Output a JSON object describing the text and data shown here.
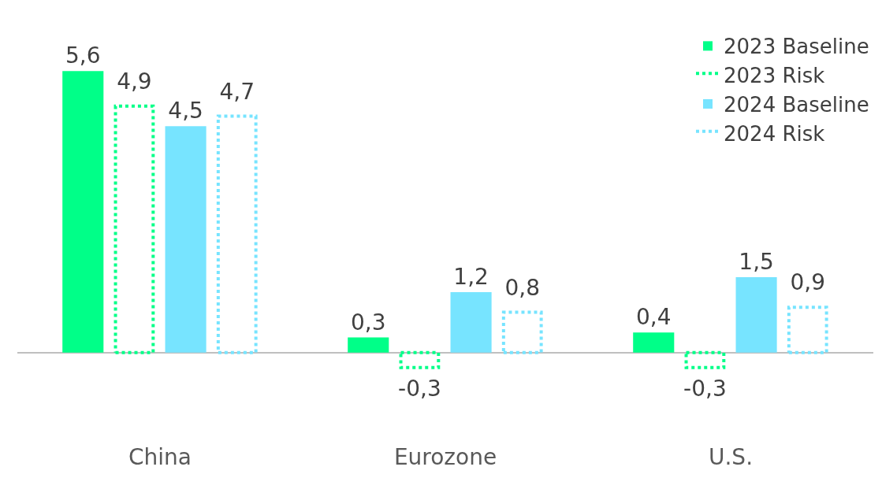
{
  "chart_data": {
    "type": "bar",
    "categories": [
      "China",
      "Eurozone",
      "U.S."
    ],
    "series": [
      {
        "name": "2023 Baseline",
        "color": "#00ff88",
        "line_style": "solid",
        "values": [
          5.6,
          0.3,
          0.4
        ],
        "value_labels": [
          "5,6",
          "0,3",
          "0,4"
        ]
      },
      {
        "name": "2023 Risk",
        "color": "#00ff88",
        "line_style": "dotted",
        "values": [
          4.9,
          -0.3,
          -0.3
        ],
        "value_labels": [
          "4,9",
          "-0,3",
          "-0,3"
        ]
      },
      {
        "name": "2024 Baseline",
        "color": "#77e4ff",
        "line_style": "solid",
        "values": [
          4.5,
          1.2,
          1.5
        ],
        "value_labels": [
          "4,5",
          "1,2",
          "1,5"
        ]
      },
      {
        "name": "2024 Risk",
        "color": "#77e4ff",
        "line_style": "dotted",
        "values": [
          4.7,
          0.8,
          0.9
        ],
        "value_labels": [
          "4,7",
          "0,8",
          "0,9"
        ]
      }
    ],
    "legend": "top right"
  }
}
